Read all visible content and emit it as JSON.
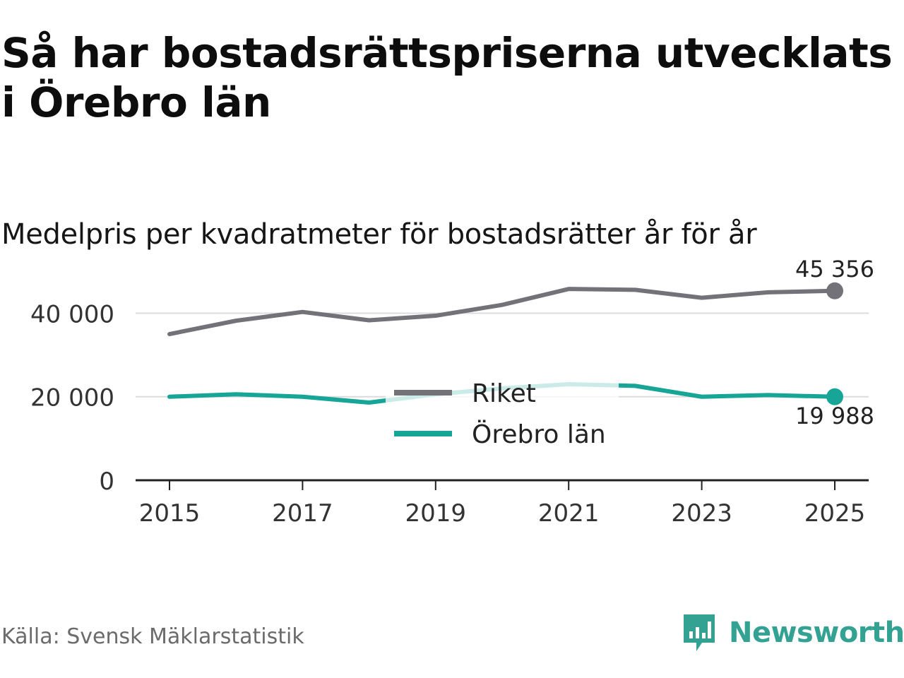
{
  "title": "Så har bostadsrättspriserna utvecklats i Örebro län",
  "subtitle": "Medelpris per kvadratmeter för bostadsrätter år för år",
  "source": "Källa: Svensk Mäklarstatistik",
  "brand": {
    "name": "Newsworthy",
    "color": "#33a293",
    "icon": "newsworthy-logo-icon"
  },
  "chart_data": {
    "type": "line",
    "x": [
      2015,
      2016,
      2017,
      2018,
      2019,
      2020,
      2021,
      2022,
      2023,
      2024,
      2025
    ],
    "series": [
      {
        "name": "Riket",
        "color": "#737278",
        "values": [
          35000,
          38200,
          40300,
          38300,
          39400,
          42000,
          45800,
          45600,
          43700,
          45000,
          45356
        ],
        "end_label": "45 356"
      },
      {
        "name": "Örebro län",
        "color": "#16a596",
        "values": [
          20000,
          20600,
          20000,
          18600,
          20600,
          22000,
          23000,
          22600,
          20000,
          20400,
          19988
        ],
        "end_label": "19 988"
      }
    ],
    "y_ticks": [
      {
        "value": 0,
        "label": "0"
      },
      {
        "value": 20000,
        "label": "20 000"
      },
      {
        "value": 40000,
        "label": "40 000"
      }
    ],
    "x_ticks": [
      {
        "value": 2015,
        "label": "2015"
      },
      {
        "value": 2017,
        "label": "2017"
      },
      {
        "value": 2019,
        "label": "2019"
      },
      {
        "value": 2021,
        "label": "2021"
      },
      {
        "value": 2023,
        "label": "2023"
      },
      {
        "value": 2025,
        "label": "2025"
      }
    ],
    "xlim": [
      2015,
      2025
    ],
    "ylim": [
      0,
      46000
    ],
    "grid": true,
    "legend_position": "center"
  }
}
